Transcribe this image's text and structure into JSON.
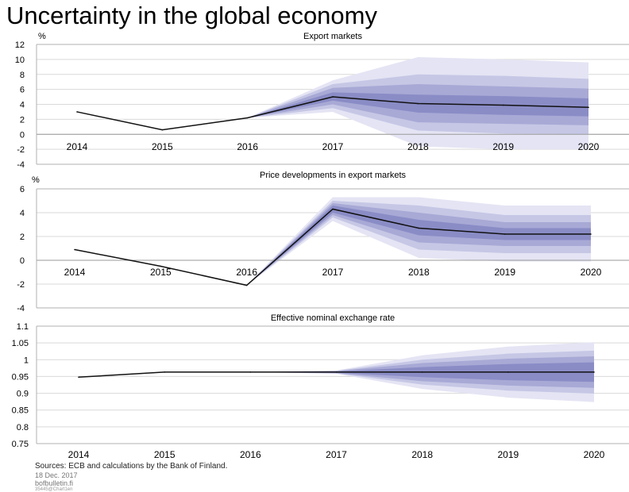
{
  "title": "Uncertainty in the global economy",
  "colors": {
    "band_outer": "#e4e4f4",
    "band_inner": "#8a8cc6",
    "line": "#111111",
    "grid": "#d9d9d9",
    "axis": "#b0b0b0"
  },
  "chart_data": [
    {
      "type": "area",
      "title": "Export markets",
      "unit": "%",
      "ylim": [
        -4,
        12
      ],
      "yticks": [
        "12",
        "10",
        "8",
        "6",
        "4",
        "2",
        "0",
        "-2",
        "-4"
      ],
      "categories": [
        "2014",
        "2015",
        "2016",
        "2017",
        "2018",
        "2019",
        "2020"
      ],
      "series": [
        {
          "values": [
            3.0,
            0.6,
            2.2,
            5.0,
            4.1,
            3.9,
            3.6
          ]
        }
      ],
      "fan_bands": {
        "upper": [
          [
            3.0,
            0.6,
            2.2,
            7.2,
            10.3,
            10.0,
            9.6
          ],
          [
            3.0,
            0.6,
            2.2,
            6.7,
            8.0,
            7.8,
            7.4
          ],
          [
            3.0,
            0.6,
            2.2,
            6.2,
            6.7,
            6.4,
            6.1
          ],
          [
            3.0,
            0.6,
            2.2,
            5.6,
            5.3,
            5.1,
            4.8
          ]
        ],
        "lower": [
          [
            3.0,
            0.6,
            2.2,
            3.0,
            -1.6,
            -2.0,
            -2.0
          ],
          [
            3.0,
            0.6,
            2.2,
            3.5,
            0.5,
            0.1,
            0.0
          ],
          [
            3.0,
            0.6,
            2.2,
            4.0,
            1.6,
            1.4,
            1.2
          ],
          [
            3.0,
            0.6,
            2.2,
            4.5,
            2.9,
            2.6,
            2.4
          ]
        ]
      }
    },
    {
      "type": "area",
      "title": "Price developments in export markets",
      "unit": "%",
      "ylim": [
        -4,
        6
      ],
      "yticks": [
        "6",
        "4",
        "2",
        "0",
        "-2",
        "-4"
      ],
      "categories": [
        "2014",
        "2015",
        "2016",
        "2017",
        "2018",
        "2019",
        "2020"
      ],
      "series": [
        {
          "values": [
            0.9,
            -0.5,
            -2.1,
            4.3,
            2.7,
            2.2,
            2.2
          ]
        }
      ],
      "fan_bands": {
        "upper": [
          [
            0.9,
            -0.5,
            -2.1,
            5.3,
            5.3,
            4.6,
            4.6
          ],
          [
            0.9,
            -0.5,
            -2.1,
            5.0,
            4.6,
            3.8,
            3.8
          ],
          [
            0.9,
            -0.5,
            -2.1,
            4.8,
            4.0,
            3.2,
            3.2
          ],
          [
            0.9,
            -0.5,
            -2.1,
            4.6,
            3.4,
            2.7,
            2.7
          ]
        ],
        "lower": [
          [
            0.9,
            -0.5,
            -2.1,
            3.3,
            0.2,
            -0.1,
            -0.1
          ],
          [
            0.9,
            -0.5,
            -2.1,
            3.6,
            0.9,
            0.6,
            0.6
          ],
          [
            0.9,
            -0.5,
            -2.1,
            3.8,
            1.5,
            1.2,
            1.2
          ],
          [
            0.9,
            -0.5,
            -2.1,
            4.0,
            2.1,
            1.7,
            1.7
          ]
        ]
      }
    },
    {
      "type": "area",
      "title": "Effective nominal exchange rate",
      "unit": "",
      "ylim": [
        0.75,
        1.1
      ],
      "yticks": [
        "1.1",
        "1.05",
        "1",
        "0.95",
        "0.9",
        "0.85",
        "0.8",
        "0.75"
      ],
      "categories": [
        "2014",
        "2015",
        "2016",
        "2017",
        "2018",
        "2019",
        "2020"
      ],
      "series": [
        {
          "values": [
            0.948,
            0.963,
            0.963,
            0.963,
            0.963,
            0.963,
            0.963
          ]
        }
      ],
      "fan_bands": {
        "upper": [
          [
            0.948,
            0.963,
            0.963,
            0.968,
            1.013,
            1.039,
            1.052
          ],
          [
            0.948,
            0.963,
            0.963,
            0.967,
            1.0,
            1.018,
            1.027
          ],
          [
            0.948,
            0.963,
            0.963,
            0.966,
            0.99,
            1.003,
            1.01
          ],
          [
            0.948,
            0.963,
            0.963,
            0.965,
            0.978,
            0.987,
            0.992
          ]
        ],
        "lower": [
          [
            0.948,
            0.963,
            0.963,
            0.958,
            0.913,
            0.887,
            0.874
          ],
          [
            0.948,
            0.963,
            0.963,
            0.959,
            0.926,
            0.908,
            0.899
          ],
          [
            0.948,
            0.963,
            0.963,
            0.96,
            0.936,
            0.923,
            0.916
          ],
          [
            0.948,
            0.963,
            0.963,
            0.961,
            0.948,
            0.939,
            0.934
          ]
        ]
      }
    }
  ],
  "footer": {
    "sources": "Sources: ECB and calculations by the Bank of Finland.",
    "date": "18 Dec. 2017",
    "site": "bofbulletin.fi",
    "code": "35445@Chart1en"
  }
}
